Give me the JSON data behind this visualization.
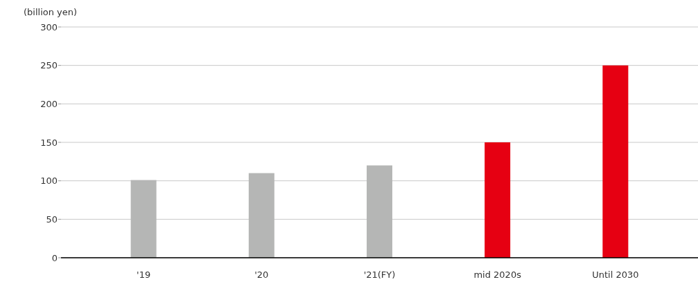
{
  "chart_data": {
    "type": "bar",
    "ylabel": "(billion yen)",
    "categories": [
      "'19",
      "'20",
      "'21(FY)",
      "mid 2020s",
      "Until 2030"
    ],
    "values": [
      101,
      110,
      120,
      150,
      250
    ],
    "colors": [
      "#b5b6b5",
      "#b5b6b5",
      "#b5b6b5",
      "#e60012",
      "#e60012"
    ],
    "ylim": [
      0,
      300
    ],
    "yticks": [
      0,
      50,
      100,
      150,
      200,
      250,
      300
    ],
    "grid": "y"
  }
}
